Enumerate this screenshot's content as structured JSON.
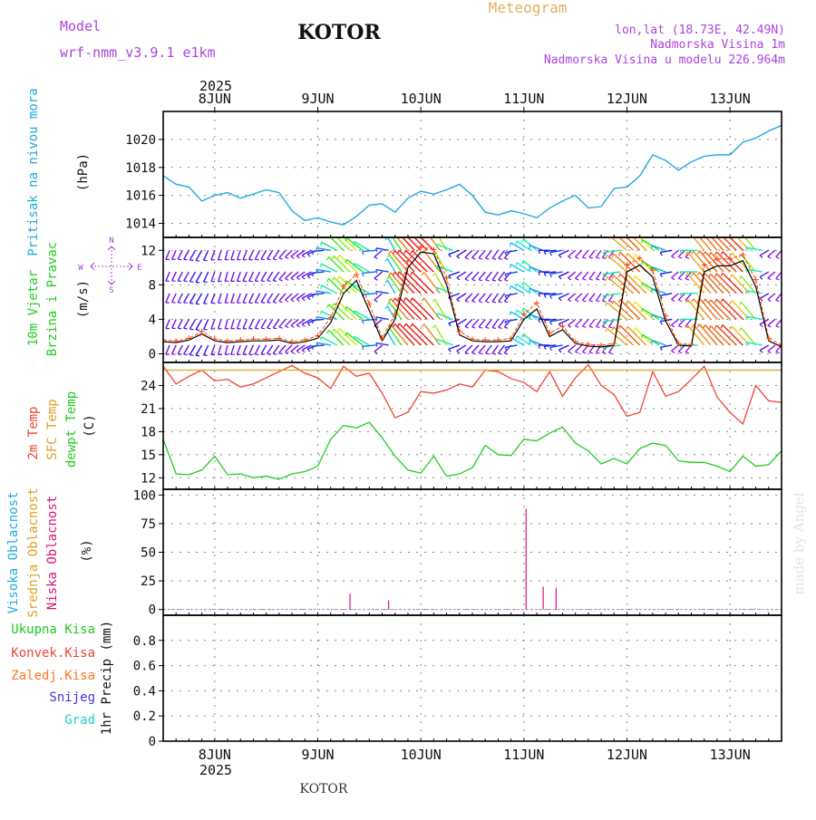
{
  "header": {
    "model_label": "Model",
    "model_name": "wrf-nmm_v3.9.1 e1km",
    "title": "KOTOR",
    "meteogram_label": "Meteogram",
    "location": "lon,lat (18.73E, 42.49N)",
    "elevation": "Nadmorska Visina 1m",
    "model_elevation": "Nadmorska Visina u modelu 226.964m",
    "footer_title": "KOTOR",
    "watermark": "made by Angel"
  },
  "colors": {
    "pressure": "#22aadd",
    "temp2m": "#ee4433",
    "sfc_temp": "#e0a020",
    "dewpoint": "#22cc22",
    "high_cloud": "#22aadd",
    "mid_cloud": "#e0a020",
    "low_cloud": "#dd1177",
    "total_rain": "#22cc22",
    "convective_rain": "#ee4433",
    "freezing_rain": "#ff7722",
    "snow": "#4433dd",
    "hail": "#22cccc",
    "wind_speed": "#000000",
    "gust": "#ff4400",
    "header_purple": "#aa44dd",
    "header_orange": "#e0b060",
    "watermark": "#dde6dd"
  },
  "chart_data": [
    {
      "type": "line",
      "panel": "pressure",
      "ylabel_lines": [
        "Pritisak na nivou mora",
        "(hPa)"
      ],
      "ylim": [
        1013,
        1022
      ],
      "yticks": [
        1014,
        1016,
        1018,
        1020
      ],
      "grid": true,
      "x_days": [
        "8JUN",
        "9JUN",
        "10JUN",
        "11JUN",
        "12JUN",
        "13JUN"
      ],
      "x_year": "2025",
      "x_hours": [
        0,
        3,
        6,
        9,
        12,
        15,
        18,
        21,
        24,
        27,
        30,
        33,
        36,
        39,
        42,
        45,
        48,
        51,
        54,
        57,
        60,
        63,
        66,
        69,
        72,
        75,
        78,
        81,
        84,
        87,
        90,
        93,
        96,
        99,
        102,
        105,
        108,
        111,
        114,
        117,
        120,
        123,
        126,
        129,
        132,
        135,
        138,
        141,
        144
      ],
      "series": [
        {
          "name": "",
          "values": [
            1017.4,
            1016.8,
            1016.6,
            1015.6,
            1016.0,
            1016.2,
            1015.8,
            1016.1,
            1016.4,
            1016.2,
            1014.9,
            1014.2,
            1014.4,
            1014.1,
            1013.9,
            1014.5,
            1015.3,
            1015.4,
            1014.8,
            1015.8,
            1016.3,
            1016.1,
            1016.4,
            1016.8,
            1016.0,
            1014.8,
            1014.6,
            1014.9,
            1014.7,
            1014.4,
            1015.1,
            1015.6,
            1016.0,
            1015.1,
            1015.2,
            1016.5,
            1016.6,
            1017.4,
            1018.9,
            1018.5,
            1017.8,
            1018.4,
            1018.8,
            1018.9,
            1018.9,
            1019.8,
            1020.1,
            1020.6,
            1021.0
          ]
        }
      ]
    },
    {
      "type": "line",
      "panel": "wind",
      "ylabel_lines": [
        "10m Vjetar",
        "Brzina i Pravac",
        "(m/s)"
      ],
      "compass": {
        "n": "N",
        "s": "S",
        "w": "W",
        "e": "E"
      },
      "ylim": [
        -1,
        13.5
      ],
      "yticks": [
        0,
        4,
        8,
        12
      ],
      "barb_levels": [
        1,
        4,
        7,
        9.5,
        12
      ],
      "grid": true,
      "x_hours": [
        0,
        3,
        6,
        9,
        12,
        15,
        18,
        21,
        24,
        27,
        30,
        33,
        36,
        39,
        42,
        45,
        48,
        51,
        54,
        57,
        60,
        63,
        66,
        69,
        72,
        75,
        78,
        81,
        84,
        87,
        90,
        93,
        96,
        99,
        102,
        105,
        108,
        111,
        114,
        117,
        120,
        123,
        126,
        129,
        132,
        135,
        138,
        141,
        144
      ],
      "series": [
        {
          "name": "",
          "values": [
            1.4,
            1.3,
            1.6,
            2.3,
            1.5,
            1.3,
            1.4,
            1.5,
            1.5,
            1.6,
            1.2,
            1.4,
            1.8,
            3.6,
            7.0,
            8.5,
            5.0,
            1.5,
            4.0,
            10.0,
            11.8,
            11.6,
            8.0,
            2.2,
            1.5,
            1.4,
            1.4,
            1.5,
            4.0,
            5.2,
            2.0,
            2.8,
            1.2,
            0.9,
            0.8,
            1.0,
            9.5,
            10.3,
            8.9,
            3.8,
            1.0,
            0.9,
            9.5,
            10.2,
            10.2,
            10.8,
            7.8,
            1.5,
            0.8
          ]
        },
        {
          "name": "",
          "values": [
            1.6,
            1.5,
            1.8,
            2.6,
            1.7,
            1.5,
            1.6,
            1.7,
            1.7,
            1.8,
            1.4,
            1.6,
            2.1,
            4.2,
            7.8,
            9.2,
            5.8,
            1.8,
            4.6,
            10.8,
            12.4,
            12.1,
            8.8,
            2.6,
            1.7,
            1.6,
            1.6,
            1.8,
            4.6,
            5.9,
            2.4,
            3.2,
            1.4,
            1.1,
            1.0,
            1.2,
            10.3,
            11.1,
            9.7,
            4.4,
            1.2,
            1.1,
            10.3,
            11.0,
            11.0,
            11.5,
            8.6,
            1.8,
            1.0
          ]
        }
      ],
      "barb_dirs": [
        200,
        205,
        210,
        210,
        200,
        195,
        200,
        205,
        210,
        215,
        225,
        235,
        250,
        280,
        315,
        315,
        300,
        230,
        330,
        320,
        315,
        315,
        330,
        250,
        225,
        220,
        215,
        220,
        300,
        310,
        270,
        260,
        230,
        220,
        215,
        215,
        310,
        315,
        315,
        290,
        230,
        220,
        320,
        320,
        315,
        315,
        320,
        240,
        220
      ]
    },
    {
      "type": "line",
      "panel": "temperature",
      "ylabel_lines": [
        "2m Temp",
        "SFC Temp",
        "dewpt Temp",
        "(C)"
      ],
      "ylim": [
        10.5,
        27
      ],
      "yticks": [
        12,
        15,
        18,
        21,
        24
      ],
      "grid": true,
      "x_hours": [
        0,
        3,
        6,
        9,
        12,
        15,
        18,
        21,
        24,
        27,
        30,
        33,
        36,
        39,
        42,
        45,
        48,
        51,
        54,
        57,
        60,
        63,
        66,
        69,
        72,
        75,
        78,
        81,
        84,
        87,
        90,
        93,
        96,
        99,
        102,
        105,
        108,
        111,
        114,
        117,
        120,
        123,
        126,
        129,
        132,
        135,
        138,
        141,
        144
      ],
      "series": [
        {
          "name": "",
          "values": [
            26.5,
            24.2,
            25.2,
            26.0,
            24.6,
            24.8,
            23.8,
            24.2,
            25.0,
            25.8,
            26.6,
            25.6,
            25.0,
            23.6,
            26.5,
            25.2,
            25.6,
            23.0,
            19.8,
            20.5,
            23.2,
            23.0,
            23.4,
            24.2,
            23.8,
            26.0,
            25.8,
            24.9,
            24.4,
            23.2,
            25.8,
            22.6,
            25.0,
            26.7,
            24.0,
            22.8,
            20.0,
            20.5,
            25.8,
            22.6,
            23.2,
            24.8,
            26.5,
            22.5,
            20.5,
            19.0,
            24.0,
            22.0,
            21.8
          ]
        },
        {
          "name": "",
          "values": [
            26.0,
            26.0,
            26.0,
            26.0,
            26.0,
            26.0,
            26.0,
            26.0,
            26.0,
            26.0,
            26.0,
            26.0,
            26.0,
            26.0,
            26.0,
            26.0,
            26.0,
            26.0,
            26.0,
            26.0,
            26.0,
            26.0,
            26.0,
            26.0,
            26.0,
            26.0,
            26.0,
            26.0,
            26.0,
            26.0,
            26.0,
            26.0,
            26.0,
            26.0,
            26.0,
            26.0,
            26.0,
            26.0,
            26.0,
            26.0,
            26.0,
            26.0,
            26.0,
            26.0,
            26.0,
            26.0,
            26.0,
            26.0,
            26.0
          ]
        },
        {
          "name": "",
          "values": [
            17.0,
            12.5,
            12.4,
            13.0,
            14.8,
            12.4,
            12.5,
            12.0,
            12.2,
            11.8,
            12.5,
            12.8,
            13.5,
            17.0,
            18.8,
            18.5,
            19.2,
            17.2,
            14.8,
            13.0,
            12.6,
            14.8,
            12.2,
            12.5,
            13.3,
            16.2,
            15.0,
            14.9,
            17.0,
            16.8,
            17.8,
            18.6,
            16.5,
            15.5,
            13.8,
            14.5,
            13.8,
            15.8,
            16.5,
            16.2,
            14.2,
            14.0,
            14.0,
            13.5,
            12.8,
            14.8,
            13.5,
            13.7,
            15.5
          ]
        }
      ]
    },
    {
      "type": "bar",
      "panel": "cloud",
      "ylabel_lines": [
        "Visoka Oblacnost",
        "Srednja Oblacnost",
        "Niska Oblacnost",
        "(%)"
      ],
      "ylim": [
        -5,
        105
      ],
      "yticks": [
        0,
        25,
        50,
        75,
        100
      ],
      "grid": true,
      "series": [
        {
          "name": "",
          "points": [
            [
              43.5,
              14
            ],
            [
              52.5,
              8
            ],
            [
              84.5,
              88
            ],
            [
              88.5,
              20
            ],
            [
              91.5,
              19
            ]
          ]
        }
      ]
    },
    {
      "type": "bar",
      "panel": "precip",
      "ylabel_lines": [
        "1hr Precip (mm)"
      ],
      "legend": [
        "Ukupna Kisa",
        "Konvek.Kisa",
        "Zaledj.Kisa",
        "Snijeg",
        "Grad"
      ],
      "ylim": [
        0,
        1.0
      ],
      "yticks": [
        0,
        0.2,
        0.4,
        0.6,
        0.8
      ],
      "grid": true,
      "series": []
    }
  ]
}
